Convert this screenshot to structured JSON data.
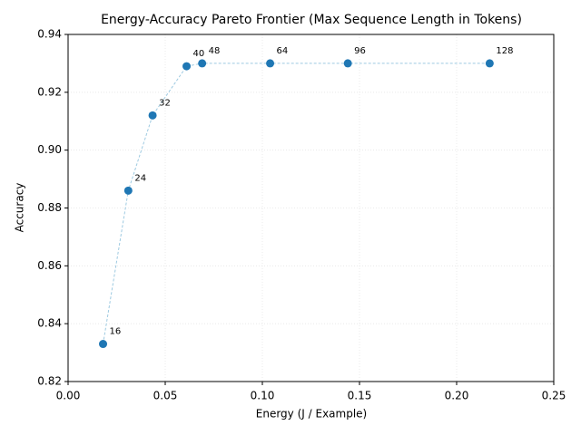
{
  "chart_data": {
    "type": "scatter",
    "title": "Energy-Accuracy Pareto Frontier (Max Sequence Length in Tokens)",
    "x_label": "Energy (J / Example)",
    "y_label": "Accuracy",
    "x": [
      0.018,
      0.031,
      0.0435,
      0.061,
      0.069,
      0.104,
      0.144,
      0.217
    ],
    "values": [
      0.833,
      0.886,
      0.912,
      0.929,
      0.93,
      0.93,
      0.93,
      0.93
    ],
    "point_labels": [
      "16",
      "24",
      "32",
      "40",
      "48",
      "64",
      "96",
      "128"
    ],
    "color": "#1f77b4",
    "line_color": "#9ecae1",
    "xlim": [
      0,
      0.25
    ],
    "ylim": [
      0.82,
      0.94
    ],
    "xticks": [
      {
        "value": 0,
        "label": "0.00"
      },
      {
        "value": 0.05,
        "label": "0.05"
      },
      {
        "value": 0.1,
        "label": "0.10"
      },
      {
        "value": 0.15,
        "label": "0.15"
      },
      {
        "value": 0.2,
        "label": "0.20"
      },
      {
        "value": 0.25,
        "label": "0.25"
      }
    ],
    "yticks": [
      0.82,
      0.84,
      0.86,
      0.88,
      {
        "value": 0.9,
        "label": "0.90"
      },
      0.92,
      0.94
    ],
    "grid": true
  }
}
